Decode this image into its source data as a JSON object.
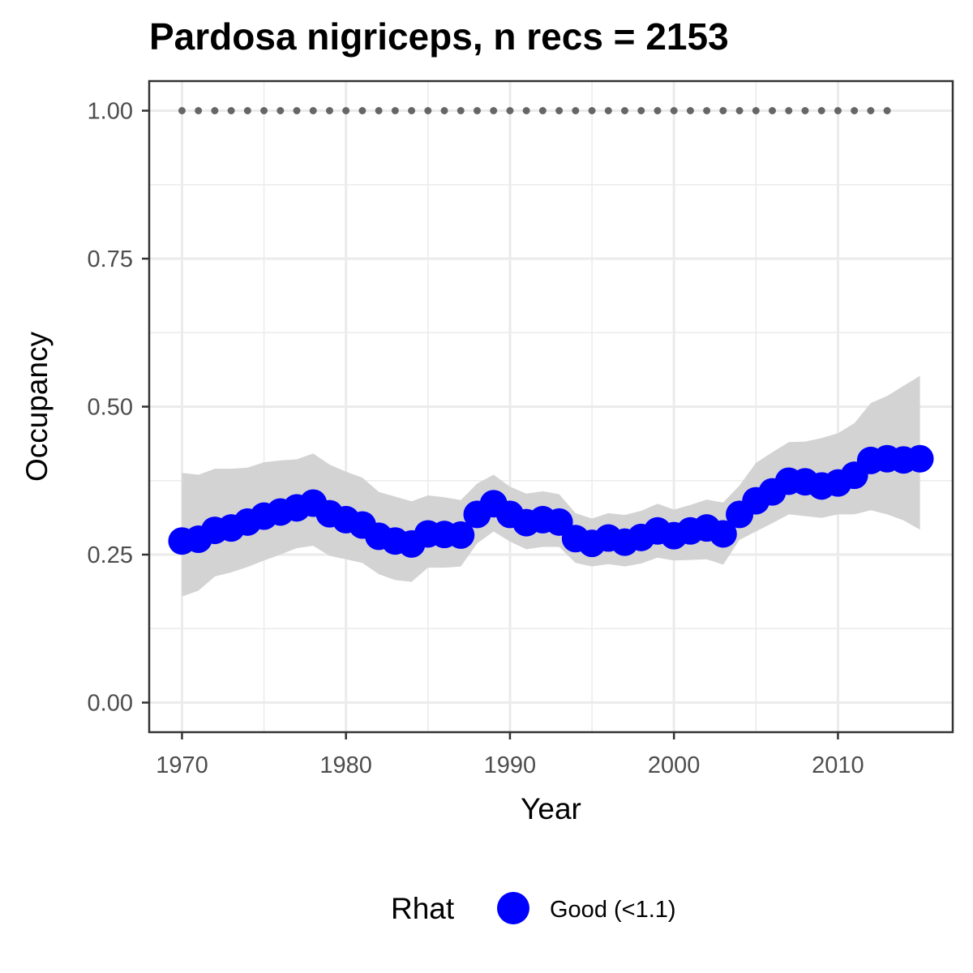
{
  "chart_data": {
    "type": "line",
    "title": "Pardosa nigriceps, n recs = 2153",
    "xlabel": "Year",
    "ylabel": "Occupancy",
    "xlim": [
      1968,
      2017
    ],
    "ylim": [
      -0.05,
      1.05
    ],
    "x_ticks": [
      1970,
      1980,
      1990,
      2000,
      2010
    ],
    "x_tick_labels": [
      "1970",
      "1980",
      "1990",
      "2000",
      "2010"
    ],
    "y_ticks": [
      0,
      0.25,
      0.5,
      0.75,
      1.0
    ],
    "y_tick_labels": [
      "0.00",
      "0.25",
      "0.50",
      "0.75",
      "1.00"
    ],
    "grid": true,
    "legend": {
      "title": "Rhat",
      "position": "bottom",
      "entries": [
        {
          "label": "Good (<1.1)",
          "color": "#0000ff"
        }
      ]
    },
    "colors": {
      "points": "#0000ff",
      "ribbon": "#d3d3d3",
      "records": "#666666",
      "grid": "#ebebeb",
      "border": "#333333"
    },
    "series": [
      {
        "name": "Good (<1.1)",
        "x": [
          1970,
          1971,
          1972,
          1973,
          1974,
          1975,
          1976,
          1977,
          1978,
          1979,
          1980,
          1981,
          1982,
          1983,
          1984,
          1985,
          1986,
          1987,
          1988,
          1989,
          1990,
          1991,
          1992,
          1993,
          1994,
          1995,
          1996,
          1997,
          1998,
          1999,
          2000,
          2001,
          2002,
          2003,
          2004,
          2005,
          2006,
          2007,
          2008,
          2009,
          2010,
          2011,
          2012,
          2013,
          2014,
          2015
        ],
        "y": [
          0.273,
          0.276,
          0.291,
          0.295,
          0.305,
          0.315,
          0.322,
          0.329,
          0.337,
          0.319,
          0.309,
          0.3,
          0.281,
          0.273,
          0.268,
          0.285,
          0.284,
          0.283,
          0.318,
          0.336,
          0.318,
          0.304,
          0.309,
          0.305,
          0.277,
          0.269,
          0.278,
          0.271,
          0.279,
          0.29,
          0.282,
          0.29,
          0.295,
          0.285,
          0.318,
          0.341,
          0.356,
          0.374,
          0.373,
          0.366,
          0.371,
          0.384,
          0.409,
          0.412,
          0.41,
          0.412
        ],
        "lower": [
          0.179,
          0.189,
          0.213,
          0.22,
          0.229,
          0.24,
          0.25,
          0.261,
          0.265,
          0.248,
          0.242,
          0.236,
          0.217,
          0.207,
          0.204,
          0.228,
          0.228,
          0.23,
          0.269,
          0.289,
          0.272,
          0.259,
          0.263,
          0.263,
          0.236,
          0.23,
          0.234,
          0.23,
          0.235,
          0.245,
          0.24,
          0.241,
          0.242,
          0.233,
          0.275,
          0.289,
          0.303,
          0.318,
          0.315,
          0.312,
          0.318,
          0.318,
          0.325,
          0.318,
          0.308,
          0.292
        ],
        "upper": [
          0.388,
          0.385,
          0.395,
          0.395,
          0.397,
          0.406,
          0.409,
          0.411,
          0.421,
          0.402,
          0.39,
          0.38,
          0.356,
          0.348,
          0.34,
          0.35,
          0.347,
          0.342,
          0.37,
          0.385,
          0.365,
          0.353,
          0.357,
          0.352,
          0.32,
          0.311,
          0.32,
          0.317,
          0.324,
          0.336,
          0.326,
          0.334,
          0.343,
          0.338,
          0.367,
          0.405,
          0.423,
          0.44,
          0.441,
          0.447,
          0.455,
          0.472,
          0.506,
          0.518,
          0.535,
          0.552
        ]
      }
    ],
    "records_series": {
      "y": 1.0,
      "x": [
        1970,
        1971,
        1972,
        1973,
        1974,
        1975,
        1976,
        1977,
        1978,
        1979,
        1980,
        1981,
        1982,
        1983,
        1984,
        1985,
        1986,
        1987,
        1988,
        1989,
        1990,
        1991,
        1992,
        1993,
        1994,
        1995,
        1996,
        1997,
        1998,
        1999,
        2000,
        2001,
        2002,
        2003,
        2004,
        2005,
        2006,
        2007,
        2008,
        2009,
        2010,
        2011,
        2012,
        2013
      ]
    }
  }
}
